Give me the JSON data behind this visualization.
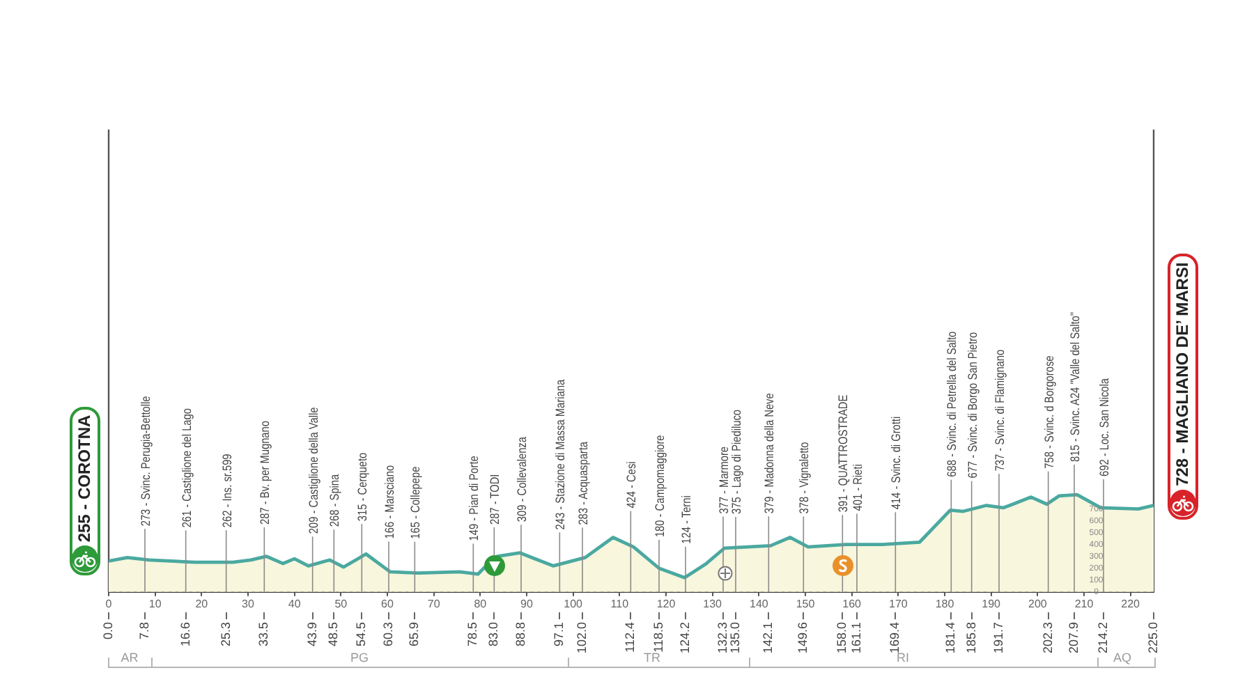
{
  "chart_data": {
    "type": "area",
    "xlim": [
      0,
      225
    ],
    "ylim": [
      0,
      3900
    ],
    "grid": true,
    "legend": false,
    "marker": "none",
    "xticks": [
      0,
      10,
      20,
      30,
      40,
      50,
      60,
      70,
      80,
      90,
      100,
      110,
      120,
      130,
      140,
      150,
      160,
      170,
      180,
      190,
      200,
      210,
      220
    ],
    "x2lim": [
      0,
      225
    ],
    "x2ticks": [
      {
        "value": 0,
        "label": "0.0"
      },
      7.8,
      16.6,
      25.3,
      33.5,
      43.9,
      48.5,
      54.5,
      60.3,
      65.9,
      78.5,
      {
        "value": 83,
        "label": "83.0"
      },
      88.8,
      97.1,
      {
        "value": 102,
        "label": "102.0"
      },
      112.4,
      118.5,
      124.2,
      132.3,
      {
        "value": 135,
        "label": "135.0"
      },
      142.1,
      149.6,
      {
        "value": 158,
        "label": "158.0"
      },
      161.1,
      169.4,
      181.4,
      185.8,
      191.7,
      202.3,
      207.9,
      214.2,
      {
        "value": 225,
        "label": "225.0"
      }
    ],
    "yticks": [
      0,
      100,
      200,
      300,
      400,
      500,
      600,
      700
    ],
    "series": [
      {
        "color": "#4aa9a0",
        "x": [
          0,
          4,
          8.7,
          18.6,
          26.7,
          30.6,
          34,
          37.5,
          40,
          43,
          47.6,
          50.6,
          55.4,
          60.6,
          66.6,
          75.6,
          79.5,
          83,
          83.7,
          88.5,
          95.7,
          102.6,
          108.6,
          113,
          118.5,
          124,
          128.7,
          132.6,
          142.5,
          146.7,
          150.6,
          158.7,
          166.5,
          174.6,
          181.2,
          184,
          189,
          192.6,
          194.7,
          198.6,
          202,
          204.6,
          208.5,
          213.6,
          221.7,
          225
        ],
        "values": [
          260,
          290,
          270,
          250,
          250,
          270,
          300,
          240,
          280,
          220,
          270,
          210,
          320,
          170,
          160,
          170,
          150,
          290,
          300,
          330,
          220,
          290,
          460,
          380,
          200,
          120,
          240,
          370,
          390,
          460,
          380,
          400,
          400,
          420,
          690,
          680,
          730,
          710,
          740,
          800,
          740,
          810,
          820,
          710,
          700,
          730
        ]
      }
    ],
    "annotations": [
      {
        "text": "255 - COROTNA",
        "x": 0,
        "y": 255
      },
      {
        "text": "273 - Svinc. Perugia-Bettolle",
        "x": 7.8,
        "y": 273
      },
      {
        "text": "261 - Castiglione del Lago",
        "x": 16.6,
        "y": 261
      },
      {
        "text": "262 - Ins. sr.599",
        "x": 25.3,
        "y": 262
      },
      {
        "text": "287 - Bv. per Mugnano",
        "x": 33.5,
        "y": 287
      },
      {
        "text": "209 - Castiglione della Valle",
        "x": 43.9,
        "y": 209
      },
      {
        "text": "268 - Spina",
        "x": 48.5,
        "y": 268
      },
      {
        "text": "315 - Cerqueto",
        "x": 54.5,
        "y": 315
      },
      {
        "text": "166 - Marsciano",
        "x": 60.3,
        "y": 166
      },
      {
        "text": "165 - Collepepe",
        "x": 65.9,
        "y": 165
      },
      {
        "text": "149 - Pian di Porte",
        "x": 78.5,
        "y": 149
      },
      {
        "text": "287 - TODI",
        "x": 83,
        "y": 287
      },
      {
        "text": "309 - Collevalenza",
        "x": 88.8,
        "y": 309
      },
      {
        "text": "243 - Stazione di Massa Mariana",
        "x": 97.1,
        "y": 243
      },
      {
        "text": "283 - Acquasparta",
        "x": 102,
        "y": 283
      },
      {
        "text": "424 - Cesi",
        "x": 112.4,
        "y": 424
      },
      {
        "text": "180 - Campomaggiore",
        "x": 118.5,
        "y": 180
      },
      {
        "text": "124 - Terni",
        "x": 124.2,
        "y": 124
      },
      {
        "text": "377 - Marmore",
        "x": 132.3,
        "y": 377
      },
      {
        "text": "375 - Lago di Piediluco",
        "x": 135,
        "y": 375
      },
      {
        "text": "379 - Madonna della Neve",
        "x": 142.1,
        "y": 379
      },
      {
        "text": "378 - Vignaletto",
        "x": 149.6,
        "y": 378
      },
      {
        "text": "391 - QUATTROSTRADE",
        "x": 158,
        "y": 391
      },
      {
        "text": "401 - Rieti",
        "x": 161.1,
        "y": 401
      },
      {
        "text": "414 - Svinc. di Grotti",
        "x": 169.4,
        "y": 414
      },
      {
        "text": "688 - Svinc. di Petrella del Salto",
        "x": 181.4,
        "y": 688
      },
      {
        "text": "677 - Svinc. di Borgo San Pietro",
        "x": 185.8,
        "y": 677
      },
      {
        "text": "737 - Svinc. di Flamignano",
        "x": 191.7,
        "y": 737
      },
      {
        "text": "758 - Svinc. d Borgorose",
        "x": 202.3,
        "y": 758
      },
      {
        "text": "815 - Svinc. A24 \"Valle del Salto\"",
        "x": 207.9,
        "y": 815
      },
      {
        "text": "692 - Loc. San Nicola",
        "x": 214.2,
        "y": 692
      },
      {
        "text": "728 - MAGLIANO DE’ MARSI",
        "x": 225,
        "y": 728
      },
      "AR",
      "PG",
      "TR",
      "RI",
      "AQ"
    ]
  }
}
